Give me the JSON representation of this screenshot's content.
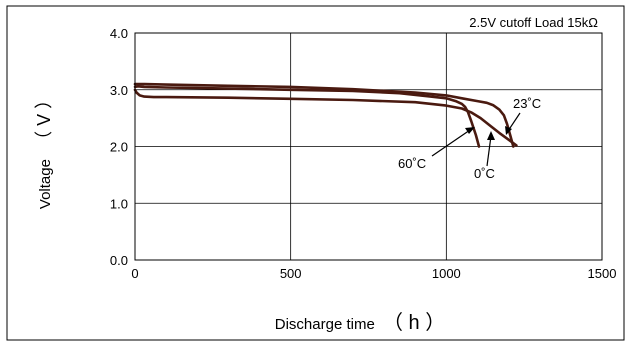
{
  "chart_data": {
    "type": "line",
    "title": "",
    "annotation_top": "2.5V cutoff Load 15kΩ",
    "xlabel": "Discharge time",
    "xunit": "（ h ）",
    "ylabel": "Voltage",
    "yunit": "（ V ）",
    "xlim": [
      0,
      1500
    ],
    "ylim": [
      0.0,
      4.0
    ],
    "xticks": [
      "0",
      "500",
      "1000",
      "1500"
    ],
    "yticks": [
      "0.0",
      "1.0",
      "2.0",
      "3.0",
      "4.0"
    ],
    "grid": true,
    "legend": "none",
    "series": [
      {
        "name": "60˚C",
        "x": [
          0,
          10,
          30,
          100,
          300,
          500,
          700,
          850,
          950,
          1000,
          1030,
          1050,
          1060,
          1070,
          1080,
          1095,
          1105
        ],
        "y": [
          3.05,
          3.06,
          3.05,
          3.04,
          3.02,
          3.0,
          2.98,
          2.94,
          2.88,
          2.85,
          2.8,
          2.75,
          2.7,
          2.6,
          2.45,
          2.2,
          2.0
        ]
      },
      {
        "name": "23˚C",
        "x": [
          0,
          10,
          30,
          100,
          300,
          500,
          700,
          900,
          1000,
          1050,
          1100,
          1130,
          1150,
          1170,
          1185,
          1195,
          1205,
          1215
        ],
        "y": [
          3.1,
          3.1,
          3.1,
          3.09,
          3.07,
          3.05,
          3.01,
          2.95,
          2.9,
          2.85,
          2.8,
          2.77,
          2.73,
          2.65,
          2.55,
          2.4,
          2.2,
          2.0
        ]
      },
      {
        "name": "0˚C",
        "x": [
          0,
          5,
          15,
          30,
          60,
          100,
          300,
          500,
          700,
          900,
          1000,
          1050,
          1080,
          1110,
          1140,
          1170,
          1200,
          1225
        ],
        "y": [
          3.0,
          2.95,
          2.9,
          2.88,
          2.87,
          2.87,
          2.86,
          2.84,
          2.82,
          2.78,
          2.72,
          2.67,
          2.6,
          2.5,
          2.37,
          2.24,
          2.12,
          2.02
        ]
      }
    ],
    "labels": {
      "s60": "60˚C",
      "s23": "23˚C",
      "s0": "0˚C"
    }
  }
}
